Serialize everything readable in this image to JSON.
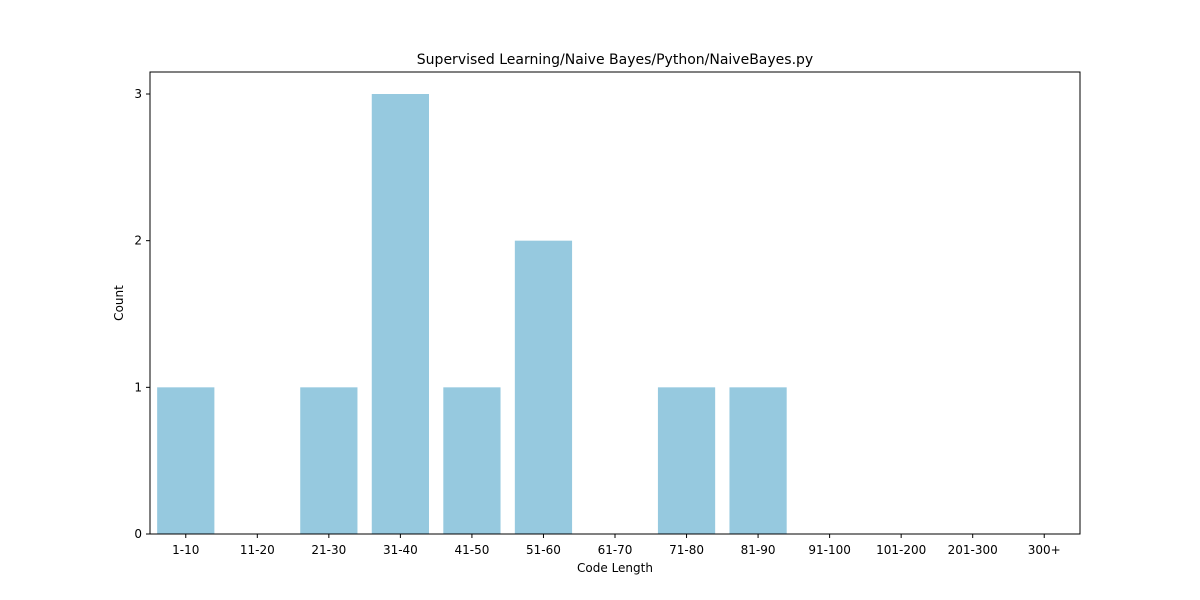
{
  "chart_data": {
    "type": "bar",
    "title": "Supervised Learning/Naive Bayes/Python/NaiveBayes.py",
    "xlabel": "Code Length",
    "ylabel": "Count",
    "categories": [
      "1-10",
      "11-20",
      "21-30",
      "31-40",
      "41-50",
      "51-60",
      "61-70",
      "71-80",
      "81-90",
      "91-100",
      "101-200",
      "201-300",
      "300+"
    ],
    "values": [
      1,
      0,
      1,
      3,
      1,
      2,
      0,
      1,
      1,
      0,
      0,
      0,
      0
    ],
    "ylim": [
      0,
      3.15
    ],
    "yticks": [
      0,
      1,
      2,
      3
    ],
    "bar_color": "#96c9df",
    "grid": false
  }
}
